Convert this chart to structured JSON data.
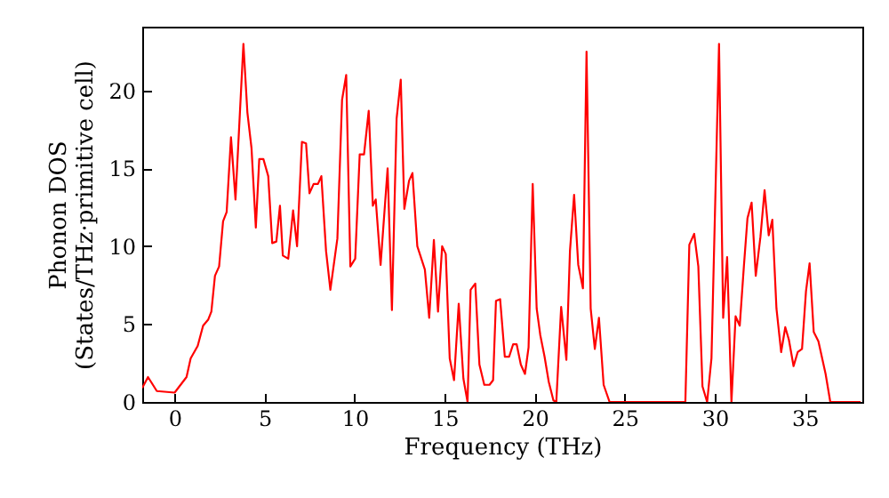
{
  "chart_data": {
    "type": "line",
    "xlabel": "Frequency (THz)",
    "ylabel": "Phonon DOS\n(States/THz·primitive cell)",
    "x": [
      -1.8,
      -1.48,
      -0.99,
      0,
      0.66,
      0.89,
      1.28,
      1.58,
      1.87,
      2.04,
      2.24,
      2.47,
      2.69,
      2.89,
      3.13,
      3.38,
      3.82,
      4.04,
      4.27,
      4.51,
      4.7,
      4.93,
      5.2,
      5.42,
      5.65,
      5.85,
      6.01,
      6.31,
      6.58,
      6.8,
      7.07,
      7.3,
      7.49,
      7.72,
      7.96,
      8.15,
      8.41,
      8.65,
      9.04,
      9.3,
      9.53,
      9.76,
      10.03,
      10.28,
      10.52,
      10.78,
      11.01,
      11.17,
      11.44,
      11.83,
      12.07,
      12.33,
      12.56,
      12.76,
      13.02,
      13.21,
      13.48,
      13.9,
      14.14,
      14.4,
      14.63,
      14.86,
      15.06,
      15.28,
      15.52,
      15.78,
      16.04,
      16.27,
      16.44,
      16.7,
      16.93,
      17.2,
      17.49,
      17.69,
      17.85,
      18.08,
      18.34,
      18.58,
      18.8,
      19.0,
      19.23,
      19.46,
      19.66,
      19.89,
      20.11,
      20.31,
      20.55,
      20.78,
      21.04,
      21.2,
      21.47,
      21.76,
      21.96,
      22.19,
      22.42,
      22.68,
      22.88,
      23.11,
      23.34,
      23.57,
      23.83,
      24.16,
      28.37,
      28.59,
      28.86,
      29.09,
      29.32,
      29.58,
      29.82,
      30.24,
      30.47,
      30.69,
      30.93,
      31.16,
      31.39,
      31.62,
      31.82,
      32.05,
      32.28,
      32.54,
      32.77,
      33.0,
      33.2,
      33.43,
      33.69,
      33.92,
      34.12,
      34.38,
      34.61,
      34.85,
      35.07,
      35.27,
      35.5,
      35.76,
      36.16,
      36.42,
      38.1
    ],
    "series": [
      {
        "color": "#ff0000",
        "values": [
          0.9,
          1.6,
          0.7,
          0.6,
          1.6,
          2.8,
          3.6,
          4.9,
          5.3,
          5.8,
          8.1,
          8.7,
          11.6,
          12.2,
          17.0,
          13.0,
          23.0,
          18.6,
          16.3,
          11.2,
          15.6,
          15.6,
          14.5,
          10.2,
          10.3,
          12.6,
          9.4,
          9.2,
          12.3,
          10.0,
          16.7,
          16.6,
          13.4,
          14.0,
          14.0,
          14.5,
          9.7,
          7.2,
          10.5,
          19.4,
          21.0,
          8.7,
          9.2,
          15.9,
          15.9,
          18.7,
          12.6,
          13.0,
          8.8,
          15.0,
          5.9,
          18.2,
          20.7,
          12.4,
          14.2,
          14.7,
          10.0,
          8.5,
          5.4,
          10.4,
          5.8,
          10.0,
          9.5,
          2.8,
          1.4,
          6.3,
          1.5,
          0,
          7.2,
          7.6,
          2.4,
          1.1,
          1.1,
          1.4,
          6.5,
          6.6,
          2.9,
          2.9,
          3.7,
          3.7,
          2.4,
          1.8,
          3.5,
          14.0,
          6.0,
          4.3,
          2.9,
          1.3,
          0.1,
          0,
          6.1,
          2.7,
          9.7,
          13.3,
          8.8,
          7.3,
          22.5,
          6.0,
          3.4,
          5.4,
          1.1,
          0,
          0,
          10.1,
          10.8,
          8.7,
          1.0,
          0,
          2.8,
          23.0,
          5.4,
          9.3,
          0,
          5.5,
          4.9,
          8.7,
          11.8,
          12.8,
          8.1,
          10.6,
          13.6,
          10.7,
          11.7,
          6.0,
          3.2,
          4.8,
          4.0,
          2.3,
          3.2,
          3.4,
          7.1,
          8.9,
          4.5,
          3.9,
          1.8,
          0,
          0
        ]
      }
    ],
    "xlim": [
      -1.8,
      38.2
    ],
    "ylim": [
      0,
      24.1
    ],
    "xticks": [
      0,
      5,
      10,
      15,
      20,
      25,
      30,
      35
    ],
    "yticks": [
      0,
      5,
      10,
      15,
      20
    ]
  }
}
